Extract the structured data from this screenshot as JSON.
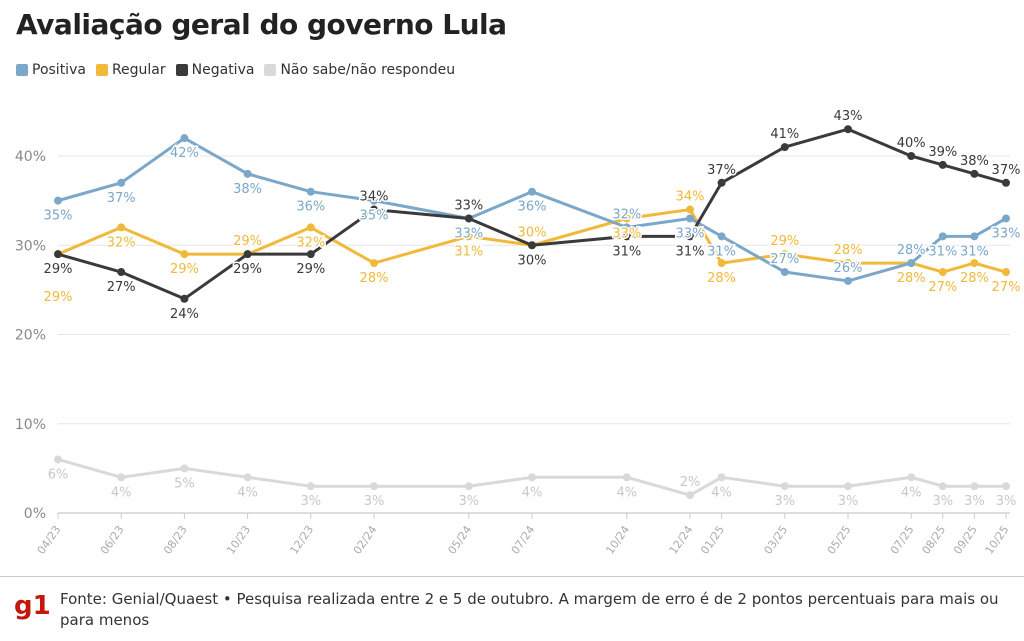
{
  "title": "Avaliação geral do governo Lula",
  "source": "Fonte: Genial/Quaest • Pesquisa realizada entre 2 e 5 de outubro. A margem de erro é de 2 pontos percentuais para mais ou para menos",
  "logo": "g1",
  "chart_data": {
    "type": "line",
    "title": "Avaliação geral do governo Lula",
    "x": [
      "04/23",
      "06/23",
      "08/23",
      "10/23",
      "12/23",
      "02/24",
      "05/24",
      "07/24",
      "10/24",
      "12/24",
      "01/25",
      "03/25",
      "05/25",
      "07/25",
      "08/25",
      "09/25",
      "10/25"
    ],
    "y_ticks": [
      "0%",
      "10%",
      "20%",
      "30%",
      "40%"
    ],
    "ylim": [
      0,
      45
    ],
    "grid": true,
    "legend": "top-left",
    "series": [
      {
        "name": "Positiva",
        "color": "#7ba7c9",
        "values": [
          35,
          37,
          42,
          38,
          36,
          35,
          33,
          36,
          32,
          33,
          31,
          27,
          26,
          28,
          31,
          31,
          33
        ]
      },
      {
        "name": "Regular",
        "color": "#f0b93a",
        "values": [
          29,
          32,
          29,
          29,
          32,
          28,
          31,
          30,
          33,
          34,
          28,
          29,
          28,
          28,
          27,
          28,
          27
        ]
      },
      {
        "name": "Negativa",
        "color": "#3a3a3a",
        "values": [
          29,
          27,
          24,
          29,
          29,
          34,
          33,
          30,
          31,
          31,
          37,
          41,
          43,
          40,
          39,
          38,
          37
        ]
      },
      {
        "name": "Não sabe/não respondeu",
        "color": "#d9d9d9",
        "values": [
          6,
          4,
          5,
          4,
          3,
          3,
          3,
          4,
          4,
          2,
          4,
          3,
          3,
          4,
          3,
          3,
          3
        ]
      }
    ]
  }
}
